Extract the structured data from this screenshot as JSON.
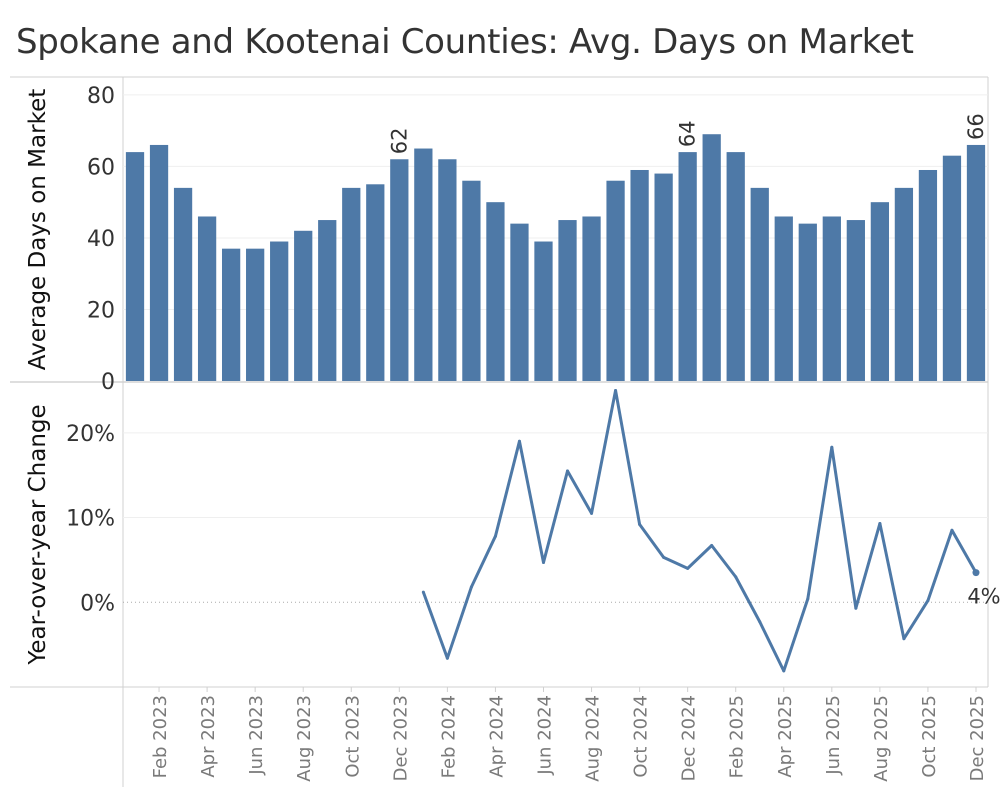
{
  "title": "Spokane and Kootenai Counties: Avg. Days on Market",
  "colors": {
    "bar": "#4e79a7",
    "line": "#4e79a7",
    "text": "#333333",
    "xtick_text": "#7a7a7a",
    "frame": "#d0d0d0",
    "grid": "#efefef",
    "zero_line": "#aaaaaa"
  },
  "chart_data": [
    {
      "type": "bar",
      "ylabel": "Average Days on Market",
      "ylim": [
        0,
        85
      ],
      "yticks": [
        "0",
        "20",
        "40",
        "60",
        "80"
      ],
      "grid": true,
      "categories": [
        "Jan 2023",
        "Feb 2023",
        "Mar 2023",
        "Apr 2023",
        "May 2023",
        "Jun 2023",
        "Jul 2023",
        "Aug 2023",
        "Sep 2023",
        "Oct 2023",
        "Nov 2023",
        "Dec 2023",
        "Jan 2024",
        "Feb 2024",
        "Mar 2024",
        "Apr 2024",
        "May 2024",
        "Jun 2024",
        "Jul 2024",
        "Aug 2024",
        "Sep 2024",
        "Oct 2024",
        "Nov 2024",
        "Dec 2024",
        "Jan 2025",
        "Feb 2025",
        "Mar 2025",
        "Apr 2025",
        "May 2025",
        "Jun 2025",
        "Jul 2025",
        "Aug 2025",
        "Sep 2025",
        "Oct 2025",
        "Nov 2025",
        "Dec 2025"
      ],
      "values": [
        64,
        66,
        54,
        46,
        37,
        37,
        39,
        42,
        45,
        54,
        55,
        62,
        65,
        62,
        56,
        50,
        44,
        39,
        45,
        46,
        56,
        59,
        58,
        64,
        69,
        64,
        54,
        46,
        44,
        46,
        45,
        50,
        54,
        59,
        63,
        66
      ],
      "data_labels": [
        {
          "category": "Dec 2023",
          "text": "62"
        },
        {
          "category": "Dec 2024",
          "text": "64"
        },
        {
          "category": "Dec 2025",
          "text": "66"
        }
      ]
    },
    {
      "type": "line",
      "ylabel": "Year-over-year Change",
      "ylim": [
        -0.1,
        0.26
      ],
      "yticks": [
        "0%",
        "10%",
        "20%"
      ],
      "grid": true,
      "categories": [
        "Jan 2024",
        "Feb 2024",
        "Mar 2024",
        "Apr 2024",
        "May 2024",
        "Jun 2024",
        "Jul 2024",
        "Aug 2024",
        "Sep 2024",
        "Oct 2024",
        "Nov 2024",
        "Dec 2024",
        "Jan 2025",
        "Feb 2025",
        "Mar 2025",
        "Apr 2025",
        "May 2025",
        "Jun 2025",
        "Jul 2025",
        "Aug 2025",
        "Sep 2025",
        "Oct 2025",
        "Nov 2025",
        "Dec 2025"
      ],
      "values": [
        0.012,
        -0.066,
        0.018,
        0.078,
        0.19,
        0.047,
        0.155,
        0.105,
        0.25,
        0.092,
        0.053,
        0.04,
        0.067,
        0.03,
        -0.023,
        -0.081,
        0.004,
        0.183,
        -0.007,
        0.093,
        -0.043,
        0.002,
        0.085,
        0.035
      ],
      "data_labels": [
        {
          "category": "Dec 2025",
          "text": "4%"
        }
      ]
    }
  ],
  "x_axis": {
    "labels": [
      "Feb 2023",
      "Apr 2023",
      "Jun 2023",
      "Aug 2023",
      "Oct 2023",
      "Dec 2023",
      "Feb 2024",
      "Apr 2024",
      "Jun 2024",
      "Aug 2024",
      "Oct 2024",
      "Dec 2024",
      "Feb 2025",
      "Apr 2025",
      "Jun 2025",
      "Aug 2025",
      "Oct 2025",
      "Dec 2025"
    ]
  }
}
